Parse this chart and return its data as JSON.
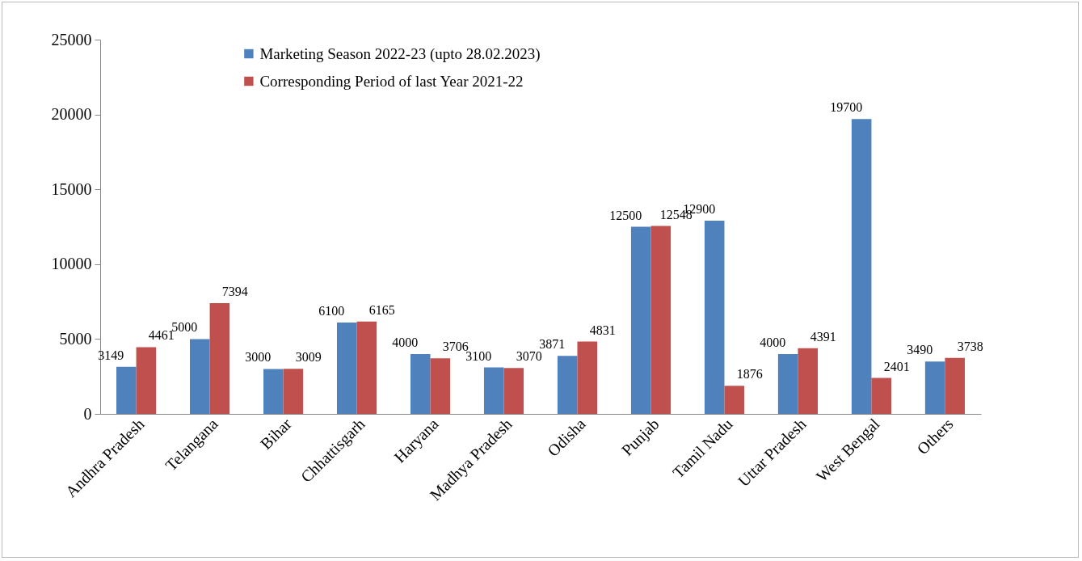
{
  "chart_data": {
    "type": "bar",
    "categories": [
      "Andhra Pradesh",
      "Telangana",
      "Bihar",
      "Chhattisgarh",
      "Haryana",
      "Madhya Pradesh",
      "Odisha",
      "Punjab",
      "Tamil Nadu",
      "Uttar Pradesh",
      "West Bengal",
      "Others"
    ],
    "series": [
      {
        "name": "Marketing Season 2022-23 (upto 28.02.2023)",
        "color": "#4f81bd",
        "values": [
          3149,
          5000,
          3000,
          6100,
          4000,
          3100,
          3871,
          12500,
          12900,
          4000,
          19700,
          3490
        ]
      },
      {
        "name": "Corresponding Period of last Year 2021-22",
        "color": "#c0504d",
        "values": [
          4461,
          7394,
          3009,
          6165,
          3706,
          3070,
          4831,
          12548,
          1876,
          4391,
          2401,
          3738
        ]
      }
    ],
    "ylim": [
      0,
      25000
    ],
    "yticks": [
      0,
      5000,
      10000,
      15000,
      20000,
      25000
    ],
    "data_labels": true,
    "legend": "top",
    "grid": false
  }
}
